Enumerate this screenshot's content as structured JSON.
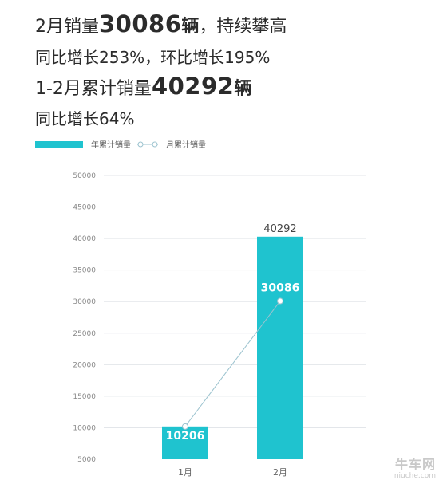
{
  "headlines": {
    "line1": {
      "prefix": "2月销量",
      "number": "30086",
      "unit": "辆",
      "suffix": "，持续攀高"
    },
    "line2": "同比增长253%，环比增长195%",
    "line3": {
      "prefix": "1-2月累计销量",
      "number": "40292",
      "unit": "辆"
    },
    "line4": "同比增长64%"
  },
  "chart_data": {
    "type": "bar",
    "categories": [
      "1月",
      "2月"
    ],
    "series": [
      {
        "name": "年累计销量",
        "type": "bar",
        "values": [
          10206,
          40292
        ],
        "color": "#1fc3cf"
      },
      {
        "name": "月累计销量",
        "type": "line",
        "values": [
          10206,
          30086
        ],
        "color": "#9cc3cf"
      }
    ],
    "bar_labels": [
      "",
      "40292"
    ],
    "point_labels": [
      "10206",
      "30086"
    ],
    "y_ticks": [
      5000,
      10000,
      15000,
      20000,
      25000,
      30000,
      35000,
      40000,
      45000,
      50000
    ],
    "ylim": [
      5000,
      50000
    ],
    "grid": true,
    "legend": "top-left"
  },
  "watermark": {
    "name": "牛车网",
    "url": "niuche.com"
  }
}
